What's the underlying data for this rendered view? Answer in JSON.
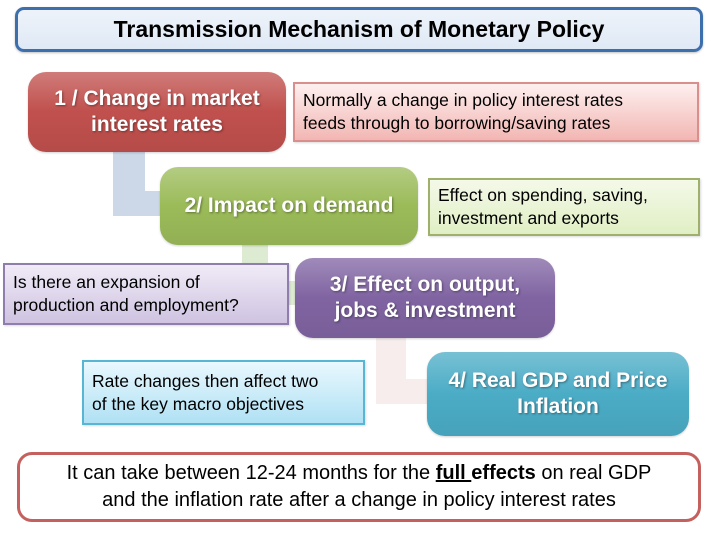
{
  "title": "Transmission Mechanism of Monetary Policy",
  "steps": {
    "step1": {
      "lines": [
        "1 / Change in market",
        "interest rates"
      ]
    },
    "step2": {
      "lines": [
        "2/ Impact on demand"
      ]
    },
    "step3": {
      "lines": [
        "3/ Effect on output,",
        "jobs & investment"
      ]
    },
    "step4": {
      "lines": [
        "4/ Real GDP and Price",
        "Inflation"
      ]
    }
  },
  "notes": {
    "note1": {
      "lines": [
        "Normally a change in policy interest rates",
        "feeds through to borrowing/saving rates"
      ]
    },
    "note2": {
      "lines": [
        "Effect on spending, saving,",
        "investment and exports"
      ]
    },
    "note3": {
      "lines": [
        "Is there an expansion of",
        "production and employment?"
      ]
    },
    "note4": {
      "lines": [
        "Rate changes then affect two",
        "of the key macro objectives"
      ]
    }
  },
  "footer": {
    "line1_prefix": "It can take between 12-24 months for the ",
    "line1_emphasis_underlined": "full ",
    "line1_emphasis_bold": "effects",
    "line1_suffix": " on real GDP",
    "line2": "and the inflation rate after a change in policy interest rates"
  },
  "colors": {
    "title_fill": "#dfe9f5",
    "title_border": "#3e6fad",
    "step1": "#c0504d",
    "step2": "#9bbb59",
    "step3": "#8064a2",
    "step4": "#4bacc6",
    "note1_fill": "#f2b6b3",
    "note1_fill_light": "#fdf0ef",
    "note1_border": "#d9908c",
    "note2_fill": "#e0efc4",
    "note2_fill_light": "#f4f9e8",
    "note2_border": "#9fb06c",
    "note3_fill": "#cfc3e1",
    "note3_fill_light": "#f0ebf7",
    "note3_border": "#8f7ead",
    "note4_fill": "#b0e1f4",
    "note4_fill_light": "#e9f8fe",
    "note4_border": "#58b5d3",
    "footer_border": "#c4605d",
    "connector1": "#ccd7e8",
    "connector2": "#ddebd2",
    "connector3": "#f6edec"
  }
}
